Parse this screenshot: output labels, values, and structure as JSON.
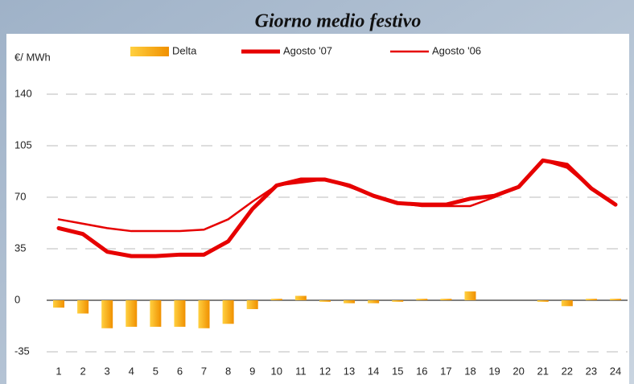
{
  "chart_data": {
    "type": "bar_line",
    "title": "Giorno medio festivo",
    "y_axis_label": "€/ MWh",
    "categories": [
      "1",
      "2",
      "3",
      "4",
      "5",
      "6",
      "7",
      "8",
      "9",
      "10",
      "11",
      "12",
      "13",
      "14",
      "15",
      "16",
      "17",
      "18",
      "19",
      "20",
      "21",
      "22",
      "23",
      "24"
    ],
    "series": [
      {
        "name": "Delta",
        "type": "bar",
        "color": "#f5a300",
        "values": [
          -5,
          -9,
          -19,
          -18,
          -18,
          -18,
          -19,
          -16,
          -6,
          1,
          3,
          -1,
          -2,
          -2,
          -1,
          1,
          1,
          6,
          0,
          0,
          -1,
          -4,
          1,
          1
        ]
      },
      {
        "name": "Agosto '07",
        "type": "line",
        "color": "#e60000",
        "width": 5,
        "values": [
          49,
          45,
          33,
          30,
          30,
          31,
          31,
          40,
          62,
          78,
          82,
          82,
          78,
          71,
          66,
          65,
          65,
          69,
          71,
          77,
          95,
          92,
          76,
          65
        ]
      },
      {
        "name": "Agosto '06",
        "type": "line",
        "color": "#e60000",
        "width": 2.5,
        "values": [
          55,
          52,
          49,
          47,
          47,
          47,
          48,
          55,
          67,
          78,
          80,
          82,
          77,
          71,
          66,
          64,
          64,
          64,
          70,
          77,
          95,
          90,
          76,
          65
        ]
      }
    ],
    "ylim": [
      -35,
      140
    ],
    "yticks": [
      -35,
      0,
      35,
      70,
      105,
      140
    ],
    "grid": true,
    "legend": "top"
  }
}
